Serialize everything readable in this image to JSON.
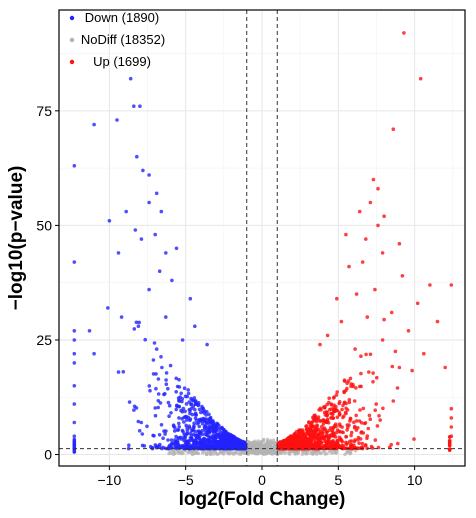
{
  "chart_data": {
    "type": "scatter",
    "xlabel": "log2(Fold Change)",
    "ylabel": "−log10(p−value)",
    "xlim": [
      -13.3,
      13.3
    ],
    "ylim": [
      -2.5,
      97
    ],
    "x_ticks": [
      -10,
      -5,
      0,
      5,
      10
    ],
    "x_tick_labels": [
      "−10",
      "−5",
      "0",
      "5",
      "10"
    ],
    "y_ticks": [
      0,
      25,
      50,
      75
    ],
    "y_tick_labels": [
      "0",
      "25",
      "50",
      "75"
    ],
    "grid": true,
    "legend_position": "top-left",
    "thresholds": {
      "log2fc": [
        -1,
        1
      ],
      "neg_log10_p": 1.3
    },
    "series": [
      {
        "name": "Down",
        "label": "Down (1890)",
        "count": 1890,
        "color": "#2323ff",
        "highlight_points": [
          [
            -8.6,
            82
          ],
          [
            -8.4,
            76
          ],
          [
            -8.0,
            76
          ],
          [
            -11.0,
            72
          ],
          [
            -9.5,
            73
          ],
          [
            -8.2,
            65
          ],
          [
            -7.8,
            62
          ],
          [
            -7.4,
            61
          ],
          [
            -6.9,
            57
          ],
          [
            -7.4,
            55
          ],
          [
            -6.6,
            53
          ],
          [
            -8.9,
            53
          ],
          [
            -10.0,
            51
          ],
          [
            -8.3,
            49
          ],
          [
            -7.0,
            48
          ],
          [
            -7.9,
            47
          ],
          [
            -5.6,
            45
          ],
          [
            -6.3,
            44
          ],
          [
            -9.4,
            44
          ],
          [
            -12.3,
            63
          ],
          [
            -12.3,
            42
          ],
          [
            -6.7,
            40
          ],
          [
            -5.9,
            38
          ],
          [
            -7.4,
            36
          ],
          [
            -4.7,
            34
          ],
          [
            -10.1,
            32
          ],
          [
            -9.2,
            30
          ],
          [
            -6.3,
            30
          ],
          [
            -4.4,
            28
          ],
          [
            -8.1,
            28
          ],
          [
            -11.3,
            27
          ],
          [
            -5.2,
            25
          ],
          [
            -3.6,
            24
          ],
          [
            -6.9,
            23
          ],
          [
            -11.0,
            22
          ],
          [
            -9.4,
            18
          ],
          [
            -12.3,
            27
          ],
          [
            -12.3,
            25
          ],
          [
            -12.3,
            22
          ],
          [
            -12.3,
            20
          ],
          [
            -12.3,
            15
          ],
          [
            -12.3,
            11
          ],
          [
            -12.3,
            7
          ],
          [
            -12.3,
            4
          ]
        ]
      },
      {
        "name": "NoDiff",
        "label": "NoDiff (18352)",
        "count": 18352,
        "color": "#b3b3b3"
      },
      {
        "name": "Up",
        "label": "Up (1699)",
        "count": 1699,
        "color": "#ff1010",
        "highlight_points": [
          [
            9.3,
            92
          ],
          [
            10.4,
            82
          ],
          [
            8.6,
            71
          ],
          [
            7.3,
            60
          ],
          [
            7.6,
            58
          ],
          [
            7.1,
            55
          ],
          [
            6.4,
            53
          ],
          [
            8.0,
            52
          ],
          [
            7.6,
            50
          ],
          [
            5.5,
            48
          ],
          [
            6.8,
            47
          ],
          [
            9.0,
            46
          ],
          [
            7.9,
            44
          ],
          [
            6.6,
            42
          ],
          [
            5.7,
            41
          ],
          [
            9.2,
            39
          ],
          [
            12.4,
            37
          ],
          [
            11.0,
            37
          ],
          [
            7.4,
            36
          ],
          [
            6.2,
            35
          ],
          [
            4.9,
            34
          ],
          [
            10.2,
            33
          ],
          [
            8.5,
            31
          ],
          [
            6.9,
            30
          ],
          [
            5.2,
            29
          ],
          [
            11.5,
            29
          ],
          [
            9.6,
            27
          ],
          [
            4.3,
            26
          ],
          [
            7.9,
            25
          ],
          [
            3.8,
            24
          ],
          [
            10.6,
            22
          ],
          [
            6.1,
            23
          ],
          [
            12.0,
            19
          ],
          [
            9.0,
            19
          ],
          [
            7.0,
            18
          ],
          [
            12.4,
            10
          ],
          [
            12.4,
            8
          ],
          [
            12.4,
            6
          ],
          [
            12.4,
            4
          ]
        ]
      }
    ]
  }
}
